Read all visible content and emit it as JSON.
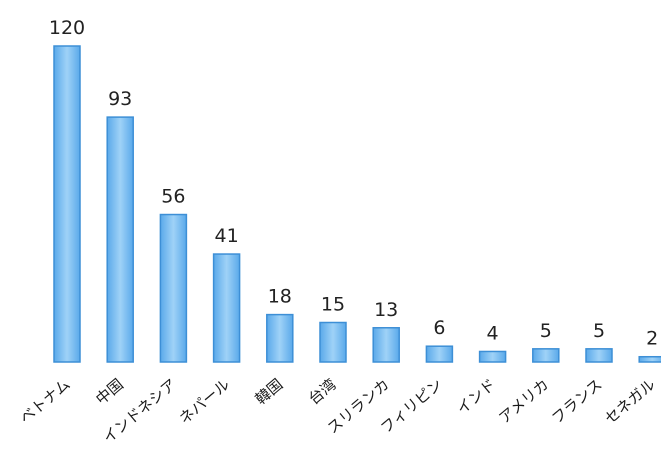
{
  "chart_data": {
    "type": "bar",
    "title": "",
    "xlabel": "",
    "ylabel": "",
    "categories": [
      "ベトナム",
      "中国",
      "インドネシア",
      "ネパール",
      "韓国",
      "台湾",
      "スリランカ",
      "フィリピン",
      "インド",
      "アメリカ",
      "フランス",
      "セネガル"
    ],
    "values": [
      120,
      93,
      56,
      41,
      18,
      15,
      13,
      6,
      4,
      5,
      5,
      2
    ],
    "value_labels": [
      "120",
      "93",
      "56",
      "41",
      "18",
      "15",
      "13",
      "6",
      "4",
      "5",
      "5",
      "2"
    ],
    "ylim": [
      0,
      120
    ],
    "grid": false,
    "bar_color": "#7ec0ee",
    "bar_edge_color": "#3d8fd6"
  }
}
